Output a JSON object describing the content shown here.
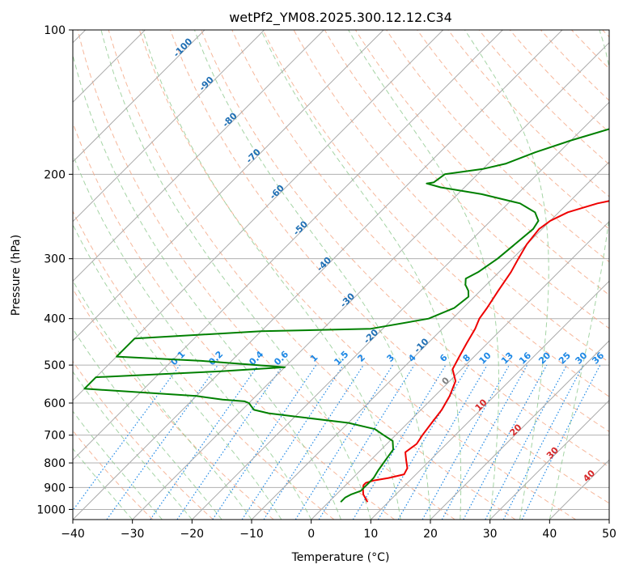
{
  "chart_data": {
    "type": "line",
    "title": "wetPf2_YM08.2025.300.12.12.C34",
    "xlabel": "Temperature (°C)",
    "ylabel": "Pressure (hPa)",
    "xlim": [
      -40,
      50
    ],
    "ylim": [
      1050,
      100
    ],
    "y_scale": "log",
    "x_ticks": [
      "−40",
      "−30",
      "−20",
      "−10",
      "0",
      "10",
      "20",
      "30",
      "40",
      "50"
    ],
    "y_ticks": [
      "100",
      "200",
      "300",
      "400",
      "500",
      "600",
      "700",
      "800",
      "900",
      "1000"
    ],
    "grid": true,
    "colors": {
      "temperature": "#ee0000",
      "dewpoint": "#008000",
      "isotherm": "#aaaaaa",
      "dry_adiabat": "#f4a582",
      "moist_adiabat": "#8fc98f",
      "mixing_ratio": "#1e88e5",
      "mixing_ratio_label": "#1e88e5",
      "isotherm_label_cold": "#1f6fb4",
      "isotherm_label_warm": "#d62728",
      "isotherm_label_zero": "#7f7f7f"
    },
    "series": [
      {
        "key": "temperature",
        "p": [
          965,
          930,
          905,
          890,
          880,
          870,
          860,
          845,
          820,
          790,
          760,
          730,
          700,
          660,
          620,
          580,
          540,
          510,
          480,
          450,
          420,
          400,
          380,
          350,
          320,
          300,
          280,
          260,
          250,
          240,
          230,
          220,
          210,
          200,
          190,
          180,
          170,
          160,
          150,
          140,
          130,
          120,
          110,
          100
        ],
        "t": [
          6.5,
          4.5,
          3.5,
          3.0,
          3.0,
          4.0,
          6.0,
          8.0,
          7.5,
          6.0,
          4.5,
          5.0,
          4.5,
          4.0,
          3.5,
          2.5,
          1.0,
          -1.5,
          -2.5,
          -3.5,
          -4.5,
          -5.5,
          -6.0,
          -7.0,
          -8.0,
          -9.0,
          -10.0,
          -10.5,
          -10.0,
          -8.5,
          -5.0,
          1.0,
          7.0,
          12.0,
          14.0,
          16.5,
          18.5,
          20.0,
          21.5,
          23.0,
          25.5,
          28.5,
          30.0,
          31.5
        ]
      },
      {
        "key": "dewpoint",
        "p": [
          965,
          945,
          930,
          915,
          900,
          880,
          860,
          830,
          790,
          750,
          720,
          700,
          680,
          660,
          640,
          630,
          620,
          610,
          600,
          595,
          590,
          580,
          560,
          530,
          515,
          505,
          495,
          490,
          480,
          440,
          425,
          420,
          400,
          380,
          360,
          350,
          340,
          330,
          320,
          300,
          280,
          260,
          250,
          240,
          230,
          220,
          213,
          209,
          208,
          200,
          195,
          190,
          180,
          170,
          160,
          150,
          140,
          130,
          120,
          110,
          100
        ],
        "dp": [
          2.0,
          2.0,
          2.5,
          3.5,
          3.5,
          3.5,
          3.5,
          3.0,
          2.5,
          2.0,
          0.5,
          -2.0,
          -4.5,
          -10.0,
          -20.0,
          -25.0,
          -28.0,
          -29.0,
          -30.0,
          -31.0,
          -35.0,
          -40.0,
          -60.0,
          -60.0,
          -40.0,
          -30.0,
          -40.0,
          -45.0,
          -60.0,
          -60.0,
          -40.0,
          -22.0,
          -14.0,
          -11.5,
          -11.0,
          -12.0,
          -13.5,
          -14.5,
          -13.5,
          -12.5,
          -12.0,
          -11.5,
          -12.0,
          -14.0,
          -18.0,
          -26.0,
          -34.0,
          -37.0,
          -36.0,
          -35.5,
          -30.0,
          -27.0,
          -24.0,
          -20.0,
          -15.0,
          -12.0,
          -10.0,
          -8.0,
          -7.0,
          -6.0,
          -5.0
        ]
      }
    ],
    "mixing_ratio_labels": [
      "0.1",
      "0.2",
      "0.4",
      "0.6",
      "1",
      "1.5",
      "2",
      "3",
      "4",
      "6",
      "8",
      "10",
      "13",
      "16",
      "20",
      "25",
      "30",
      "36"
    ],
    "isotherm_labels": [
      "-100",
      "-90",
      "-80",
      "-70",
      "-60",
      "-50",
      "-40",
      "-30",
      "-20",
      "-10",
      "0",
      "10",
      "20",
      "30",
      "40"
    ]
  }
}
